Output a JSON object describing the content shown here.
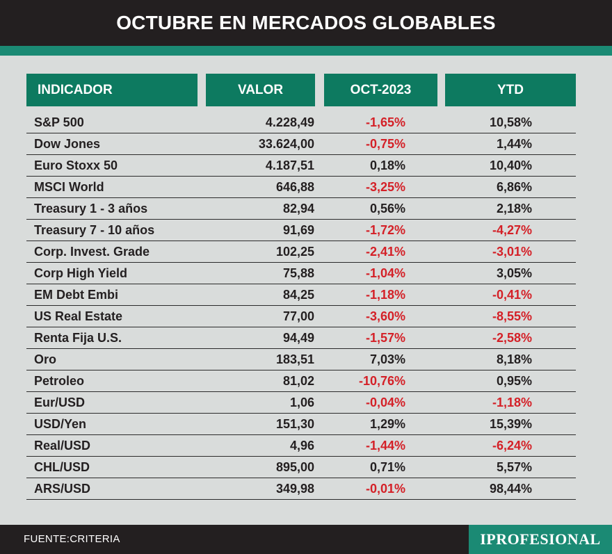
{
  "title": "OCTUBRE EN MERCADOS GLOBABLES",
  "columns": [
    "INDICADOR",
    "VALOR",
    "OCT-2023",
    "YTD"
  ],
  "rows": [
    {
      "indicador": "S&P 500",
      "valor": "4.228,49",
      "oct": "-1,65%",
      "ytd": "10,58%"
    },
    {
      "indicador": "Dow Jones",
      "valor": "33.624,00",
      "oct": "-0,75%",
      "ytd": "1,44%"
    },
    {
      "indicador": "Euro Stoxx 50",
      "valor": "4.187,51",
      "oct": "0,18%",
      "ytd": "10,40%"
    },
    {
      "indicador": "MSCI World",
      "valor": "646,88",
      "oct": "-3,25%",
      "ytd": "6,86%"
    },
    {
      "indicador": "Treasury 1 - 3 años",
      "valor": "82,94",
      "oct": "0,56%",
      "ytd": "2,18%"
    },
    {
      "indicador": "Treasury 7 - 10 años",
      "valor": "91,69",
      "oct": "-1,72%",
      "ytd": "-4,27%"
    },
    {
      "indicador": "Corp. Invest. Grade",
      "valor": "102,25",
      "oct": "-2,41%",
      "ytd": "-3,01%"
    },
    {
      "indicador": "Corp High Yield",
      "valor": "75,88",
      "oct": "-1,04%",
      "ytd": "3,05%"
    },
    {
      "indicador": "EM Debt Embi",
      "valor": "84,25",
      "oct": "-1,18%",
      "ytd": "-0,41%"
    },
    {
      "indicador": "US Real Estate",
      "valor": "77,00",
      "oct": "-3,60%",
      "ytd": "-8,55%"
    },
    {
      "indicador": "Renta Fija U.S.",
      "valor": "94,49",
      "oct": "-1,57%",
      "ytd": "-2,58%"
    },
    {
      "indicador": "Oro",
      "valor": "183,51",
      "oct": "7,03%",
      "ytd": "8,18%"
    },
    {
      "indicador": "Petroleo",
      "valor": "81,02",
      "oct": "-10,76%",
      "ytd": "0,95%"
    },
    {
      "indicador": "Eur/USD",
      "valor": "1,06",
      "oct": "-0,04%",
      "ytd": "-1,18%"
    },
    {
      "indicador": "USD/Yen",
      "valor": "151,30",
      "oct": "1,29%",
      "ytd": "15,39%"
    },
    {
      "indicador": "Real/USD",
      "valor": "4,96",
      "oct": "-1,44%",
      "ytd": "-6,24%"
    },
    {
      "indicador": "CHL/USD",
      "valor": "895,00",
      "oct": "0,71%",
      "ytd": "5,57%"
    },
    {
      "indicador": "ARS/USD",
      "valor": "349,98",
      "oct": "-0,01%",
      "ytd": "98,44%"
    }
  ],
  "footer": {
    "source": "FUENTE:CRITERIA",
    "brand": "IPROFESIONAL"
  },
  "colors": {
    "header_bg": "#231f20",
    "accent": "#1b8a74",
    "column_header": "#0d7a60",
    "negative": "#d42027",
    "background": "#d9dcdb"
  }
}
